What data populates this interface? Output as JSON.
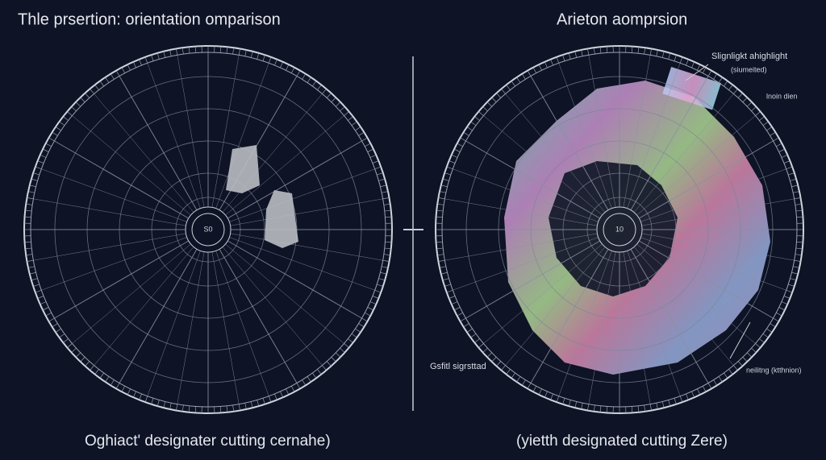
{
  "left_panel": {
    "title": "Thle prsertion: orientation omparison",
    "center_label": "S0",
    "caption": "Oghiact' designater cutting cernahe)"
  },
  "right_panel": {
    "title": "Arieton aomprsion",
    "center_label": "10",
    "caption": "(yietth designated cutting Zere)",
    "annotations": [
      "Slignligkt ahighlight",
      "(siumeited)",
      "lnoin dien",
      "Gsfitl sigrsttad",
      "neilitng (ktthnion)"
    ]
  }
}
